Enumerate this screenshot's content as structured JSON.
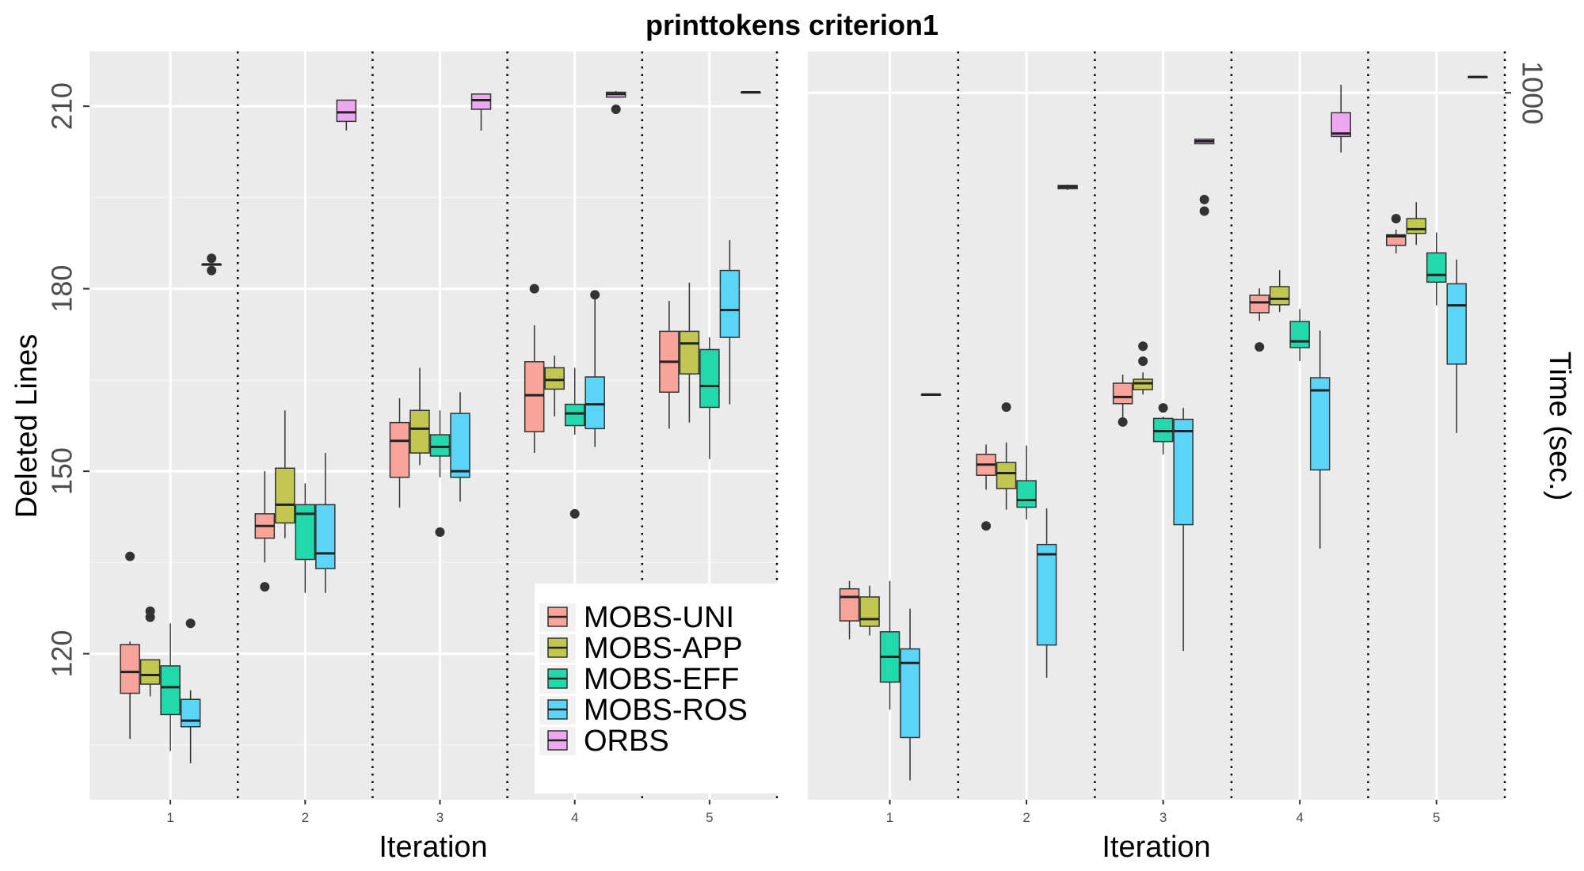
{
  "title": "printtokens criterion1",
  "chart_data": [
    {
      "type": "box",
      "panel": "left",
      "metric": "deleted_lines",
      "title": "",
      "xlabel": "Iteration",
      "ylabel": "Deleted Lines",
      "categories": [
        "1",
        "2",
        "3",
        "4",
        "5"
      ],
      "ylim": [
        96,
        219
      ],
      "yticks": [
        120,
        150,
        180,
        210
      ],
      "grid": true,
      "series": [
        {
          "name": "MOBS-UNI",
          "color": "#F8A49B",
          "boxes": [
            {
              "min": 106,
              "q1": 113.5,
              "median": 117,
              "q3": 121.5,
              "max": 122,
              "outliers": [
                136
              ]
            },
            {
              "min": 135,
              "q1": 139,
              "median": 141,
              "q3": 143,
              "max": 150,
              "outliers": [
                131
              ]
            },
            {
              "min": 144,
              "q1": 149,
              "median": 155,
              "q3": 158,
              "max": 162,
              "outliers": []
            },
            {
              "min": 153,
              "q1": 156.5,
              "median": 162.5,
              "q3": 168,
              "max": 174,
              "outliers": [
                180
              ]
            },
            {
              "min": 157,
              "q1": 163,
              "median": 168,
              "q3": 173,
              "max": 178,
              "outliers": []
            }
          ]
        },
        {
          "name": "MOBS-APP",
          "color": "#C2C84F",
          "boxes": [
            {
              "min": 113,
              "q1": 115,
              "median": 116.5,
              "q3": 119,
              "max": 119,
              "outliers": [
                126,
                127
              ]
            },
            {
              "min": 139,
              "q1": 141.5,
              "median": 144.5,
              "q3": 150.5,
              "max": 160,
              "outliers": []
            },
            {
              "min": 151,
              "q1": 153,
              "median": 157,
              "q3": 160,
              "max": 167,
              "outliers": []
            },
            {
              "min": 159,
              "q1": 163.5,
              "median": 165,
              "q3": 167,
              "max": 169,
              "outliers": []
            },
            {
              "min": 158,
              "q1": 166,
              "median": 171,
              "q3": 173,
              "max": 181,
              "outliers": []
            }
          ]
        },
        {
          "name": "MOBS-EFF",
          "color": "#22D9AC",
          "boxes": [
            {
              "min": 104,
              "q1": 110,
              "median": 114.5,
              "q3": 118,
              "max": 125,
              "outliers": []
            },
            {
              "min": 130,
              "q1": 135.5,
              "median": 143,
              "q3": 144.5,
              "max": 148,
              "outliers": []
            },
            {
              "min": 149,
              "q1": 152.5,
              "median": 154,
              "q3": 156,
              "max": 160,
              "outliers": [
                140
              ]
            },
            {
              "min": 156,
              "q1": 157.5,
              "median": 159.5,
              "q3": 161,
              "max": 167,
              "outliers": [
                143
              ]
            },
            {
              "min": 152,
              "q1": 160.5,
              "median": 164,
              "q3": 170,
              "max": 172,
              "outliers": []
            }
          ]
        },
        {
          "name": "MOBS-ROS",
          "color": "#5BD5F7",
          "boxes": [
            {
              "min": 102,
              "q1": 108,
              "median": 109,
              "q3": 112.5,
              "max": 114,
              "outliers": [
                125
              ]
            },
            {
              "min": 130,
              "q1": 134,
              "median": 136.5,
              "q3": 144.5,
              "max": 153,
              "outliers": []
            },
            {
              "min": 145,
              "q1": 149,
              "median": 150,
              "q3": 159.5,
              "max": 163,
              "outliers": []
            },
            {
              "min": 154,
              "q1": 157,
              "median": 161,
              "q3": 165.5,
              "max": 179,
              "outliers": [
                179
              ]
            },
            {
              "min": 161,
              "q1": 172,
              "median": 176.5,
              "q3": 183,
              "max": 188,
              "outliers": []
            }
          ]
        },
        {
          "name": "ORBS",
          "color": "#EDA8F0",
          "boxes": [
            {
              "min": 184,
              "q1": 184,
              "median": 184,
              "q3": 184,
              "max": 184,
              "outliers": [
                183,
                185
              ]
            },
            {
              "min": 206,
              "q1": 207.5,
              "median": 209,
              "q3": 211,
              "max": 211,
              "outliers": []
            },
            {
              "min": 206,
              "q1": 209.5,
              "median": 211,
              "q3": 212,
              "max": 212,
              "outliers": []
            },
            {
              "min": 211.5,
              "q1": 211.5,
              "median": 212,
              "q3": 212.3,
              "max": 212.5,
              "outliers": [
                209.5
              ]
            },
            {
              "min": 212.3,
              "q1": 212.3,
              "median": 212.3,
              "q3": 212.3,
              "max": 212.3,
              "outliers": []
            }
          ]
        }
      ]
    },
    {
      "type": "box",
      "panel": "right",
      "metric": "time",
      "title": "",
      "xlabel": "Iteration",
      "ylabel": "Time (sec.)",
      "categories": [
        "1",
        "2",
        "3",
        "4",
        "5"
      ],
      "yscale": "log",
      "ylim": [
        88.9,
        1152
      ],
      "yticks": [
        1000
      ],
      "grid": true,
      "series": [
        {
          "name": "MOBS-UNI",
          "color": "#F8A49B",
          "boxes": [
            {
              "min": 154,
              "q1": 164,
              "median": 178,
              "q3": 183,
              "max": 188,
              "outliers": []
            },
            {
              "min": 257,
              "q1": 270,
              "median": 280,
              "q3": 290,
              "max": 300,
              "outliers": [
                227
              ]
            },
            {
              "min": 329,
              "q1": 345,
              "median": 353,
              "q3": 370,
              "max": 381,
              "outliers": [
                324
              ]
            },
            {
              "min": 458,
              "q1": 471,
              "median": 488,
              "q3": 500,
              "max": 512,
              "outliers": [
                419
              ]
            },
            {
              "min": 577,
              "q1": 593,
              "median": 612,
              "q3": 615,
              "max": 626,
              "outliers": [
                650
              ]
            }
          ]
        },
        {
          "name": "MOBS-APP",
          "color": "#C2C84F",
          "boxes": [
            {
              "min": 156,
              "q1": 161,
              "median": 165,
              "q3": 178,
              "max": 185,
              "outliers": []
            },
            {
              "min": 240,
              "q1": 258,
              "median": 272,
              "q3": 282,
              "max": 302,
              "outliers": [
                341
              ]
            },
            {
              "min": 356,
              "q1": 362,
              "median": 370,
              "q3": 375,
              "max": 384,
              "outliers": [
                399,
                420
              ]
            },
            {
              "min": 472,
              "q1": 484,
              "median": 494,
              "q3": 515,
              "max": 545,
              "outliers": []
            },
            {
              "min": 594,
              "q1": 618,
              "median": 627,
              "q3": 650,
              "max": 688,
              "outliers": []
            }
          ]
        },
        {
          "name": "MOBS-EFF",
          "color": "#22D9AC",
          "boxes": [
            {
              "min": 121,
              "q1": 133,
              "median": 145,
              "q3": 158,
              "max": 188,
              "outliers": []
            },
            {
              "min": 232,
              "q1": 242,
              "median": 248,
              "q3": 265,
              "max": 299,
              "outliers": []
            },
            {
              "min": 290,
              "q1": 303,
              "median": 314,
              "q3": 328,
              "max": 330,
              "outliers": [
                340
              ]
            },
            {
              "min": 399,
              "q1": 418,
              "median": 427,
              "q3": 457,
              "max": 477,
              "outliers": []
            },
            {
              "min": 483,
              "q1": 523,
              "median": 536,
              "q3": 578,
              "max": 620,
              "outliers": []
            }
          ]
        },
        {
          "name": "MOBS-ROS",
          "color": "#5BD5F7",
          "boxes": [
            {
              "min": 95,
              "q1": 110,
              "median": 142,
              "q3": 149,
              "max": 171,
              "outliers": []
            },
            {
              "min": 135,
              "q1": 151,
              "median": 206,
              "q3": 213,
              "max": 241,
              "outliers": []
            },
            {
              "min": 148,
              "q1": 228,
              "median": 314,
              "q3": 327,
              "max": 340,
              "outliers": []
            },
            {
              "min": 210,
              "q1": 275,
              "median": 361,
              "q3": 377,
              "max": 443,
              "outliers": []
            },
            {
              "min": 312,
              "q1": 395,
              "median": 483,
              "q3": 520,
              "max": 565,
              "outliers": []
            }
          ]
        },
        {
          "name": "ORBS",
          "color": "#EDA8F0",
          "boxes": [
            {
              "min": 355,
              "q1": 355,
              "median": 356,
              "q3": 356,
              "max": 357,
              "outliers": []
            },
            {
              "min": 717,
              "q1": 720,
              "median": 725,
              "q3": 728,
              "max": 730,
              "outliers": []
            },
            {
              "min": 840,
              "q1": 840,
              "median": 847,
              "q3": 853,
              "max": 855,
              "outliers": [
                667,
                694
              ]
            },
            {
              "min": 815,
              "q1": 861,
              "median": 870,
              "q3": 934,
              "max": 1028,
              "outliers": []
            },
            {
              "min": 1056,
              "q1": 1056,
              "median": 1056,
              "q3": 1056,
              "max": 1056,
              "outliers": []
            }
          ]
        }
      ]
    }
  ]
}
